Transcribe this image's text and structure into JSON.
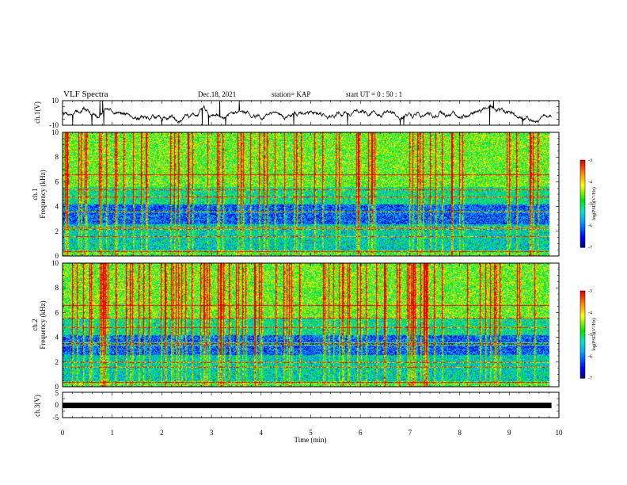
{
  "header": {
    "title": "VLF Spectra",
    "date": "Dec.18, 2021",
    "station": "station= KAP",
    "start_ut": "start  UT =  0 : 50 : 1"
  },
  "chart_data": [
    {
      "type": "line",
      "name": "ch1-waveform",
      "ylabel": "ch.1(V)",
      "ylim": [
        -10,
        10
      ],
      "yticks": [
        "10",
        "-10"
      ],
      "xlim": [
        0,
        10
      ]
    },
    {
      "type": "heatmap",
      "name": "ch1-spectrogram",
      "ylabel_line1": "ch.1",
      "ylabel_line2": "Frequency  (kHz)",
      "ylim": [
        0,
        10
      ],
      "yticks": [
        "0",
        "2",
        "4",
        "6",
        "8",
        "10"
      ],
      "xlim": [
        0,
        10
      ],
      "colorbar": {
        "label": "log(PSD)(V²/Hz)",
        "ticks": [
          "-3",
          "-4",
          "-5",
          "-6",
          "-7"
        ],
        "range": [
          -7,
          -3
        ]
      },
      "bands_khz": [
        0.4,
        1.6,
        2.2,
        2.4,
        3.6,
        4.8,
        5.4,
        6.6
      ]
    },
    {
      "type": "heatmap",
      "name": "ch2-spectrogram",
      "ylabel_line1": "ch.2",
      "ylabel_line2": "Frequency  (kHz)",
      "ylim": [
        0,
        10
      ],
      "yticks": [
        "0",
        "2",
        "4",
        "6",
        "8",
        "10"
      ],
      "xlim": [
        0,
        10
      ],
      "colorbar": {
        "label": "log(PSD)(V²/Hz)",
        "ticks": [
          "-3",
          "-4",
          "-5",
          "-6",
          "-7"
        ],
        "range": [
          -7,
          -3
        ]
      },
      "bands_khz": [
        0.4,
        1.6,
        2.0,
        3.4,
        3.6,
        4.8,
        5.6,
        6.6
      ]
    },
    {
      "type": "line",
      "name": "ch3-signal",
      "ylabel": "ch.3(V)",
      "ylim": [
        -5,
        5
      ],
      "yticks": [
        "5",
        "0",
        "-5"
      ],
      "level": -0.2,
      "xlim": [
        0,
        10
      ]
    }
  ],
  "xaxis": {
    "label": "Time  (min)",
    "ticks": [
      "0",
      "1",
      "2",
      "3",
      "4",
      "5",
      "6",
      "7",
      "8",
      "9",
      "10"
    ],
    "data_end": 9.85
  },
  "colors": {
    "frame": "#000000",
    "trace": "#000000"
  }
}
